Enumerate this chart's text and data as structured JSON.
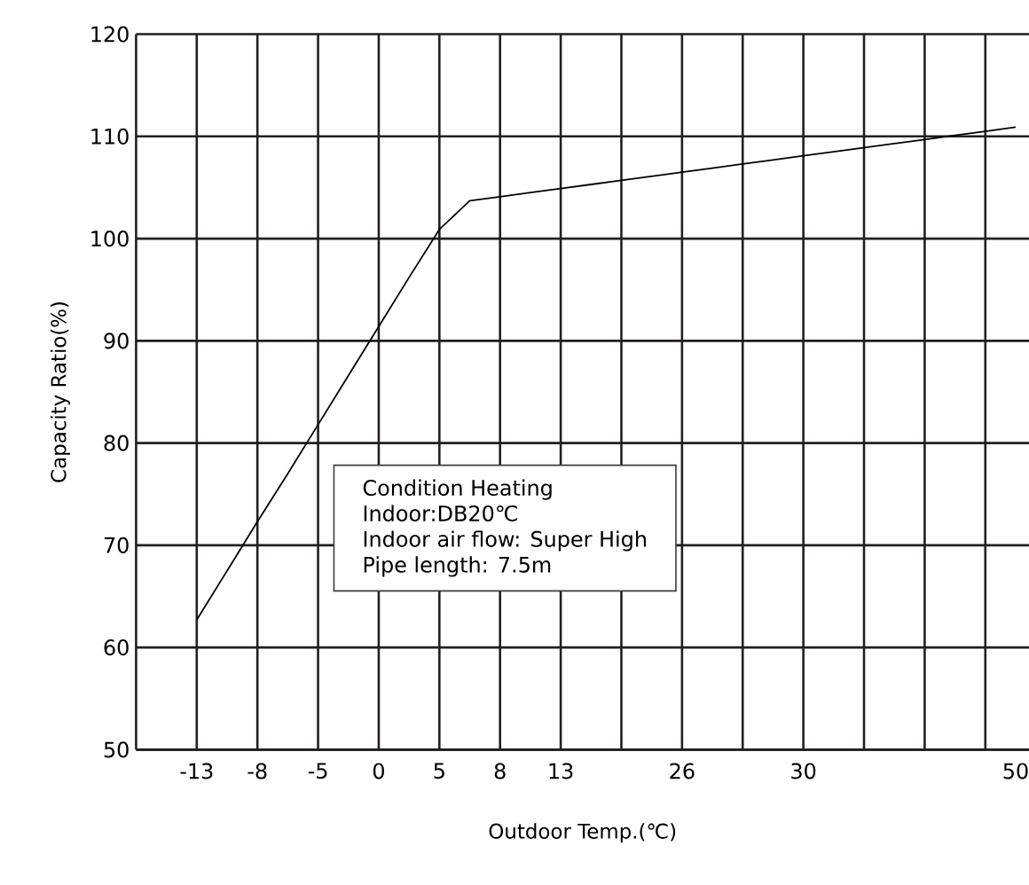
{
  "chart_data": {
    "type": "line",
    "xlabel": "Outdoor Temp.(℃)",
    "ylabel": "Capacity Ratio(%)",
    "categories": [
      "-13",
      null,
      "-8",
      null,
      "-5",
      null,
      "0",
      null,
      "5",
      null,
      "8",
      null,
      "13",
      null,
      null,
      null,
      "26",
      null,
      null,
      null,
      "30",
      null,
      null,
      null,
      null,
      null,
      null,
      "50"
    ],
    "values": [
      62.7,
      67.5,
      72.3,
      77.0,
      81.8,
      86.6,
      91.4,
      96.2,
      100.9,
      103.7,
      104.1,
      104.5,
      104.9,
      105.3,
      105.7,
      106.1,
      106.5,
      106.9,
      107.3,
      107.7,
      108.1,
      108.5,
      108.9,
      109.3,
      109.7,
      110.1,
      110.5,
      110.9
    ],
    "color": "#000000",
    "ylim": [
      50,
      120
    ],
    "yticks": [
      50,
      60,
      70,
      80,
      90,
      100,
      110,
      120
    ],
    "grid": true,
    "annotations": [
      "Condition  Heating",
      "Indoor:DB20℃",
      "Indoor air flow: Super High",
      "Pipe length: 7.5m"
    ]
  }
}
